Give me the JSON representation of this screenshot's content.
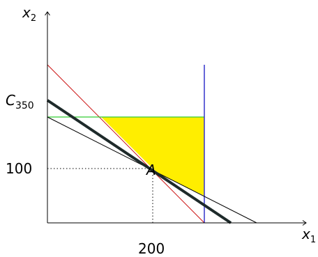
{
  "labels": {
    "x_axis": "x",
    "x_axis_sub": "1",
    "y_axis": "x",
    "y_axis_sub": "2",
    "line_c": "C",
    "line_c_sub": "350",
    "y_tick": "100",
    "x_tick": "200",
    "point": "A"
  },
  "colors": {
    "region": "#ffee00",
    "red_line": "#cc1111",
    "green_line": "#33cc33",
    "blue_line": "#3333cc",
    "thin_line": "#000000",
    "thick_line": "#1e2a2a",
    "axes": "#000000"
  }
}
